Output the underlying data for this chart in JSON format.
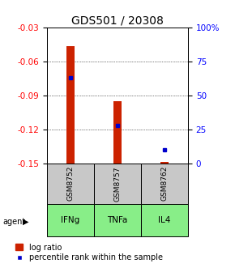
{
  "title": "GDS501 / 20308",
  "samples": [
    "GSM8752",
    "GSM8757",
    "GSM8762"
  ],
  "agents": [
    "IFNg",
    "TNFa",
    "IL4"
  ],
  "log_ratios": [
    -0.047,
    -0.095,
    -0.149
  ],
  "log_ratio_base": -0.15,
  "percentile_ranks": [
    63,
    28,
    10
  ],
  "ylim_left": [
    -0.15,
    -0.03
  ],
  "ylim_right": [
    0,
    100
  ],
  "yticks_left": [
    -0.15,
    -0.12,
    -0.09,
    -0.06,
    -0.03
  ],
  "yticks_right": [
    0,
    25,
    50,
    75,
    100
  ],
  "bar_color": "#cc2200",
  "dot_color": "#0000cc",
  "bg_color": "#ffffff",
  "sample_box_color": "#c8c8c8",
  "agent_box_color": "#88ee88",
  "title_fontsize": 10,
  "tick_fontsize": 7.5,
  "legend_fontsize": 7,
  "bar_width": 0.18
}
